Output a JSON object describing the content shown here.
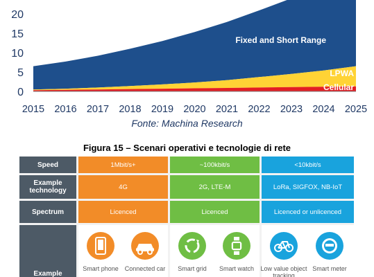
{
  "chart_data": {
    "type": "area",
    "x": [
      2015,
      2016,
      2017,
      2018,
      2019,
      2020,
      2021,
      2022,
      2023,
      2024,
      2025
    ],
    "ylim": [
      0,
      25
    ],
    "yticks": [
      0,
      5,
      10,
      15,
      20
    ],
    "series": [
      {
        "name": "Cellular",
        "values": [
          0.3,
          0.4,
          0.5,
          0.6,
          0.7,
          0.8,
          0.9,
          1.0,
          1.1,
          1.2,
          1.3
        ],
        "color": "#e31e24"
      },
      {
        "name": "LPWA",
        "values": [
          0.2,
          0.3,
          0.5,
          0.8,
          1.1,
          1.5,
          2.0,
          2.7,
          3.4,
          4.2,
          5.2
        ],
        "color": "#ffd335"
      },
      {
        "name": "Fixed and Short Range",
        "values": [
          6.0,
          7.0,
          8.2,
          9.6,
          11.2,
          13.0,
          15.0,
          17.2,
          19.5,
          22.0,
          24.5
        ],
        "color": "#1e4f8c"
      }
    ]
  },
  "source": "Fonte: Machina Research",
  "figure_title": "Figura 15 – Scenari operativi e tecnologie di rete",
  "table": {
    "rows": [
      {
        "label": "Speed",
        "cells": [
          "1Mbit/s+",
          "~100kbit/s",
          "<10kbit/s"
        ]
      },
      {
        "label": "Example technology",
        "cells": [
          "4G",
          "2G, LTE-M",
          "LoRa, SIGFOX, NB-IoT"
        ]
      },
      {
        "label": "Spectrum",
        "cells": [
          "Licenced",
          "Licenced",
          "Licenced or unlicenced"
        ]
      }
    ],
    "bottom_label": "Example",
    "examples": [
      {
        "label": "Smart phone",
        "icon": "smartphone-icon"
      },
      {
        "label": "Connected car",
        "icon": "car-icon"
      },
      {
        "label": "Smart grid",
        "icon": "recycle-icon"
      },
      {
        "label": "Smart watch",
        "icon": "watch-icon"
      },
      {
        "label": "Low value object tracking",
        "icon": "bicycle-icon"
      },
      {
        "label": "Smart meter",
        "icon": "meter-icon"
      }
    ],
    "colors": {
      "label_bg": "#4d5a66",
      "col1": "#f28c28",
      "col2": "#6fbe44",
      "col3": "#19a3dd"
    }
  }
}
